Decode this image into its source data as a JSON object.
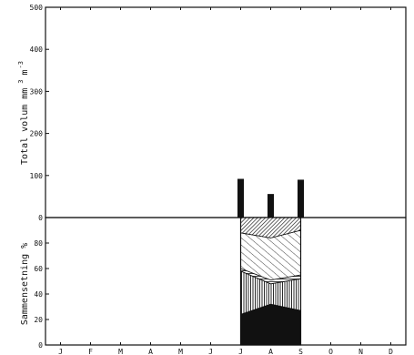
{
  "chart_data": [
    {
      "type": "bar",
      "ylabel": "Total volum mm",
      "ylabel_sup1": "3",
      "ylabel_unit": "m",
      "ylabel_sup2": "-3",
      "yticks": [
        "0",
        "100",
        "200",
        "300",
        "400",
        "500"
      ],
      "ylim": [
        0,
        500
      ],
      "categories": [
        "J",
        "F",
        "M",
        "A",
        "M",
        "J",
        "J",
        "A",
        "S",
        "O",
        "N",
        "D"
      ],
      "x": [
        6.5,
        7.5,
        8.5
      ],
      "values": [
        92,
        56,
        90
      ],
      "grid": false
    },
    {
      "type": "area",
      "ylabel": "Sammensetning %",
      "yticks": [
        "0",
        "20",
        "40",
        "60",
        "80"
      ],
      "ylim": [
        0,
        100
      ],
      "categories": [
        "J",
        "F",
        "M",
        "A",
        "M",
        "J",
        "J",
        "A",
        "S",
        "O",
        "N",
        "D"
      ],
      "x": [
        6.5,
        7.5,
        8.5
      ],
      "series": [
        {
          "values": [
            24,
            32,
            27
          ]
        },
        {
          "values": [
            34,
            16,
            25
          ]
        },
        {
          "values": [
            2,
            3,
            3
          ]
        },
        {
          "values": [
            28,
            33,
            35
          ]
        },
        {
          "values": [
            12,
            16,
            10
          ]
        }
      ],
      "grid": false
    }
  ]
}
